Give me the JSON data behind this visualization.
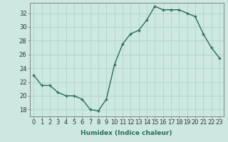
{
  "x": [
    0,
    1,
    2,
    3,
    4,
    5,
    6,
    7,
    8,
    9,
    10,
    11,
    12,
    13,
    14,
    15,
    16,
    17,
    18,
    19,
    20,
    21,
    22,
    23
  ],
  "y": [
    23.0,
    21.5,
    21.5,
    20.5,
    20.0,
    20.0,
    19.5,
    18.0,
    17.8,
    19.5,
    24.5,
    27.5,
    29.0,
    29.5,
    31.0,
    33.0,
    32.5,
    32.5,
    32.5,
    32.0,
    31.5,
    29.0,
    27.0,
    25.5
  ],
  "line_color": "#2d6b5e",
  "marker": "+",
  "marker_size": 3,
  "bg_color": "#cce8e0",
  "grid_color": "#aad0c8",
  "xlabel": "Humidex (Indice chaleur)",
  "xlim": [
    -0.5,
    23.5
  ],
  "ylim": [
    17,
    33.5
  ],
  "yticks": [
    18,
    20,
    22,
    24,
    26,
    28,
    30,
    32
  ],
  "xticks": [
    0,
    1,
    2,
    3,
    4,
    5,
    6,
    7,
    8,
    9,
    10,
    11,
    12,
    13,
    14,
    15,
    16,
    17,
    18,
    19,
    20,
    21,
    22,
    23
  ],
  "xtick_labels": [
    "0",
    "1",
    "2",
    "3",
    "4",
    "5",
    "6",
    "7",
    "8",
    "9",
    "10",
    "11",
    "12",
    "13",
    "14",
    "15",
    "16",
    "17",
    "18",
    "19",
    "20",
    "21",
    "22",
    "23"
  ],
  "xlabel_fontsize": 6.5,
  "tick_fontsize": 6,
  "line_width": 1.0,
  "markeredgewidth": 1.0
}
